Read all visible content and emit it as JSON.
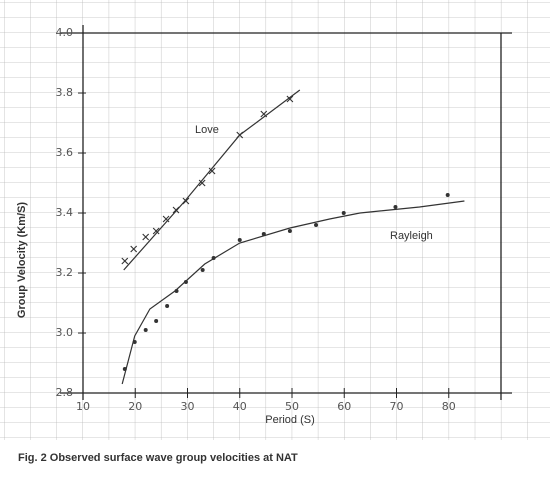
{
  "chart_data": {
    "type": "scatter",
    "xlabel": "Period (S)",
    "ylabel": "Group Velocity (Km/S)",
    "caption": "Fig. 2 Observed surface wave group velocities at NAT",
    "xlim": [
      10,
      90
    ],
    "ylim": [
      2.8,
      4.0
    ],
    "xticks": [
      10,
      20,
      30,
      40,
      50,
      60,
      70,
      80
    ],
    "yticks": [
      {
        "value": 2.8,
        "label": "2.8"
      },
      {
        "value": 3.0,
        "label": "3.0"
      },
      {
        "value": 3.2,
        "label": "3.2"
      },
      {
        "value": 3.4,
        "label": "3.4"
      },
      {
        "value": 3.6,
        "label": "3.6"
      },
      {
        "value": 3.8,
        "label": "3.8"
      },
      {
        "value": 4.0,
        "label": "4.0"
      }
    ],
    "series": [
      {
        "name": "Love",
        "marker": "x",
        "color": "#333",
        "x": [
          18.0,
          19.7,
          22.0,
          24.0,
          25.9,
          27.8,
          29.7,
          32.8,
          34.7,
          40.0,
          44.6,
          49.6
        ],
        "values": [
          3.24,
          3.28,
          3.32,
          3.34,
          3.38,
          3.41,
          3.44,
          3.5,
          3.54,
          3.66,
          3.73,
          3.78
        ],
        "fit_x": [
          17.8,
          29.5,
          40.0,
          51.5
        ],
        "fit_values": [
          3.21,
          3.44,
          3.66,
          3.81
        ]
      },
      {
        "name": "Rayleigh",
        "marker": "dot",
        "color": "#333",
        "x": [
          18.0,
          19.9,
          22.0,
          24.0,
          26.1,
          27.9,
          29.7,
          32.9,
          35.0,
          40.0,
          44.6,
          49.6,
          54.6,
          59.9,
          69.8,
          79.8
        ],
        "values": [
          2.88,
          2.97,
          3.01,
          3.04,
          3.09,
          3.14,
          3.17,
          3.21,
          3.25,
          3.31,
          3.33,
          3.34,
          3.36,
          3.4,
          3.42,
          3.46
        ],
        "fit_x": [
          17.5,
          19.9,
          22.8,
          27.6,
          33.3,
          40.0,
          49.6,
          57.2,
          63.0,
          74.4,
          83.0
        ],
        "fit_values": [
          2.83,
          2.99,
          3.08,
          3.14,
          3.23,
          3.3,
          3.35,
          3.38,
          3.4,
          3.42,
          3.44
        ]
      }
    ]
  }
}
